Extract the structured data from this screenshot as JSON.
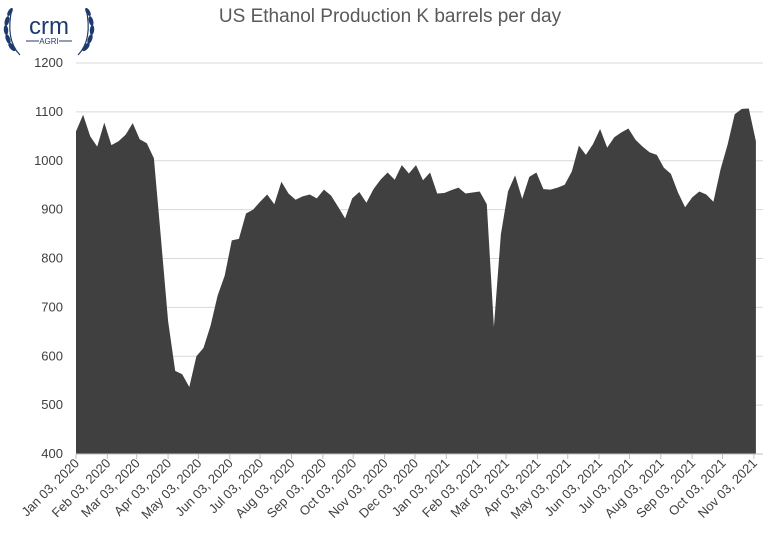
{
  "logo": {
    "name": "crm",
    "sub": "AGRI",
    "color": "#1f3b6e"
  },
  "chart_data": {
    "type": "area",
    "title": "US Ethanol Production K barrels per day",
    "xlabel": "",
    "ylabel": "",
    "ylim": [
      400,
      1200
    ],
    "yticks": [
      400,
      500,
      600,
      700,
      800,
      900,
      1000,
      1100,
      1200
    ],
    "xlim": [
      "2020-01-03",
      "2021-11-12"
    ],
    "xtick_dates": [
      "2020-01-03",
      "2020-02-03",
      "2020-03-03",
      "2020-04-03",
      "2020-05-03",
      "2020-06-03",
      "2020-07-03",
      "2020-08-03",
      "2020-09-03",
      "2020-10-03",
      "2020-11-03",
      "2020-12-03",
      "2021-01-03",
      "2021-02-03",
      "2021-03-03",
      "2021-04-03",
      "2021-05-03",
      "2021-06-03",
      "2021-07-03",
      "2021-08-03",
      "2021-09-03",
      "2021-10-03",
      "2021-11-03"
    ],
    "xtick_labels": [
      "Jan 03, 2020",
      "Feb 03, 2020",
      "Mar 03, 2020",
      "Apr 03, 2020",
      "May 03, 2020",
      "Jun 03, 2020",
      "Jul 03, 2020",
      "Aug 03, 2020",
      "Sep 03, 2020",
      "Oct 03, 2020",
      "Nov 03, 2020",
      "Dec 03, 2020",
      "Jan 03, 2021",
      "Feb 03, 2021",
      "Mar 03, 2021",
      "Apr 03, 2021",
      "May 03, 2021",
      "Jun 03, 2021",
      "Jul 03, 2021",
      "Aug 03, 2021",
      "Sep 03, 2021",
      "Oct 03, 2021",
      "Nov 03, 2021"
    ],
    "grid": true,
    "color": "#404040",
    "series": [
      {
        "points": [
          [
            "2020-01-03",
            1060
          ],
          [
            "2020-01-10",
            1094
          ],
          [
            "2020-01-17",
            1050
          ],
          [
            "2020-01-24",
            1029
          ],
          [
            "2020-01-31",
            1078
          ],
          [
            "2020-02-07",
            1032
          ],
          [
            "2020-02-14",
            1040
          ],
          [
            "2020-02-21",
            1053
          ],
          [
            "2020-02-28",
            1077
          ],
          [
            "2020-03-06",
            1044
          ],
          [
            "2020-03-13",
            1036
          ],
          [
            "2020-03-20",
            1005
          ],
          [
            "2020-03-27",
            840
          ],
          [
            "2020-04-03",
            672
          ],
          [
            "2020-04-10",
            570
          ],
          [
            "2020-04-17",
            563
          ],
          [
            "2020-04-24",
            537
          ],
          [
            "2020-05-01",
            600
          ],
          [
            "2020-05-08",
            617
          ],
          [
            "2020-05-15",
            663
          ],
          [
            "2020-05-22",
            724
          ],
          [
            "2020-05-29",
            765
          ],
          [
            "2020-06-05",
            837
          ],
          [
            "2020-06-12",
            840
          ],
          [
            "2020-06-19",
            892
          ],
          [
            "2020-06-26",
            900
          ],
          [
            "2020-07-03",
            916
          ],
          [
            "2020-07-10",
            931
          ],
          [
            "2020-07-17",
            911
          ],
          [
            "2020-07-24",
            957
          ],
          [
            "2020-07-31",
            933
          ],
          [
            "2020-08-07",
            920
          ],
          [
            "2020-08-14",
            927
          ],
          [
            "2020-08-21",
            931
          ],
          [
            "2020-08-28",
            923
          ],
          [
            "2020-09-04",
            941
          ],
          [
            "2020-09-11",
            929
          ],
          [
            "2020-09-18",
            906
          ],
          [
            "2020-09-25",
            882
          ],
          [
            "2020-10-02",
            923
          ],
          [
            "2020-10-09",
            936
          ],
          [
            "2020-10-16",
            914
          ],
          [
            "2020-10-23",
            942
          ],
          [
            "2020-10-30",
            961
          ],
          [
            "2020-11-06",
            976
          ],
          [
            "2020-11-13",
            961
          ],
          [
            "2020-11-20",
            991
          ],
          [
            "2020-11-27",
            974
          ],
          [
            "2020-12-04",
            991
          ],
          [
            "2020-12-11",
            960
          ],
          [
            "2020-12-18",
            976
          ],
          [
            "2020-12-25",
            933
          ],
          [
            "2021-01-01",
            934
          ],
          [
            "2021-01-08",
            940
          ],
          [
            "2021-01-15",
            945
          ],
          [
            "2021-01-22",
            933
          ],
          [
            "2021-01-29",
            935
          ],
          [
            "2021-02-05",
            937
          ],
          [
            "2021-02-12",
            911
          ],
          [
            "2021-02-19",
            660
          ],
          [
            "2021-02-26",
            850
          ],
          [
            "2021-03-05",
            937
          ],
          [
            "2021-03-12",
            970
          ],
          [
            "2021-03-19",
            922
          ],
          [
            "2021-03-26",
            967
          ],
          [
            "2021-04-02",
            976
          ],
          [
            "2021-04-09",
            942
          ],
          [
            "2021-04-16",
            941
          ],
          [
            "2021-04-23",
            945
          ],
          [
            "2021-04-30",
            951
          ],
          [
            "2021-05-07",
            978
          ],
          [
            "2021-05-14",
            1031
          ],
          [
            "2021-05-21",
            1012
          ],
          [
            "2021-05-28",
            1034
          ],
          [
            "2021-06-04",
            1065
          ],
          [
            "2021-06-11",
            1027
          ],
          [
            "2021-06-18",
            1048
          ],
          [
            "2021-06-25",
            1058
          ],
          [
            "2021-07-02",
            1066
          ],
          [
            "2021-07-09",
            1043
          ],
          [
            "2021-07-16",
            1029
          ],
          [
            "2021-07-23",
            1017
          ],
          [
            "2021-07-30",
            1012
          ],
          [
            "2021-08-06",
            986
          ],
          [
            "2021-08-13",
            973
          ],
          [
            "2021-08-20",
            935
          ],
          [
            "2021-08-27",
            905
          ],
          [
            "2021-09-03",
            925
          ],
          [
            "2021-09-10",
            937
          ],
          [
            "2021-09-17",
            931
          ],
          [
            "2021-09-24",
            916
          ],
          [
            "2021-10-01",
            982
          ],
          [
            "2021-10-08",
            1033
          ],
          [
            "2021-10-15",
            1095
          ],
          [
            "2021-10-22",
            1106
          ],
          [
            "2021-10-29",
            1107
          ],
          [
            "2021-11-05",
            1040
          ]
        ]
      }
    ]
  }
}
